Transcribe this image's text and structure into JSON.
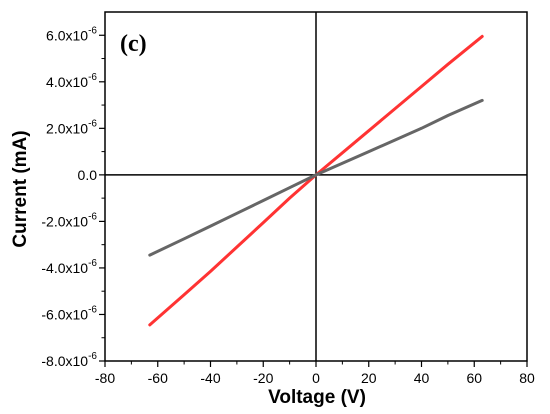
{
  "chart_data": {
    "type": "line",
    "panel_label": "(c)",
    "xlabel": "Voltage (V)",
    "ylabel": "Current (mA)",
    "xlim": [
      -80,
      80
    ],
    "ylim": [
      -8e-06,
      7e-06
    ],
    "x_ticks": [
      -80,
      -60,
      -40,
      -20,
      0,
      20,
      40,
      60,
      80
    ],
    "x_tick_labels": [
      "-80",
      "-60",
      "-40",
      "-20",
      "0",
      "20",
      "40",
      "60",
      "80"
    ],
    "y_ticks": [
      -8e-06,
      -6e-06,
      -4e-06,
      -2e-06,
      0,
      2e-06,
      4e-06,
      6e-06
    ],
    "y_tick_labels": [
      {
        "mantissa": "-8.0x10",
        "exp": "-6"
      },
      {
        "mantissa": "-6.0x10",
        "exp": "-6"
      },
      {
        "mantissa": "-4.0x10",
        "exp": "-6"
      },
      {
        "mantissa": "-2.0x10",
        "exp": "-6"
      },
      {
        "mantissa": "0.0",
        "exp": ""
      },
      {
        "mantissa": "2.0x10",
        "exp": "-6"
      },
      {
        "mantissa": "4.0x10",
        "exp": "-6"
      },
      {
        "mantissa": "6.0x10",
        "exp": "-6"
      }
    ],
    "grid": false,
    "series": [
      {
        "color": "#ff3333",
        "x": [
          -63,
          -50,
          -40,
          -30,
          -20,
          -10,
          0,
          10,
          20,
          30,
          40,
          50,
          63
        ],
        "y": [
          -6.45e-06,
          -5.15e-06,
          -4.15e-06,
          -3.1e-06,
          -2.05e-06,
          -1e-06,
          0,
          9.5e-07,
          1.9e-06,
          2.85e-06,
          3.8e-06,
          4.75e-06,
          5.95e-06
        ]
      },
      {
        "color": "#666666",
        "x": [
          -63,
          -50,
          -40,
          -30,
          -20,
          -10,
          0,
          10,
          20,
          30,
          40,
          50,
          63
        ],
        "y": [
          -3.45e-06,
          -2.75e-06,
          -2.2e-06,
          -1.65e-06,
          -1.1e-06,
          -5.5e-07,
          0,
          5e-07,
          1e-06,
          1.5e-06,
          2e-06,
          2.55e-06,
          3.2e-06
        ]
      }
    ]
  }
}
